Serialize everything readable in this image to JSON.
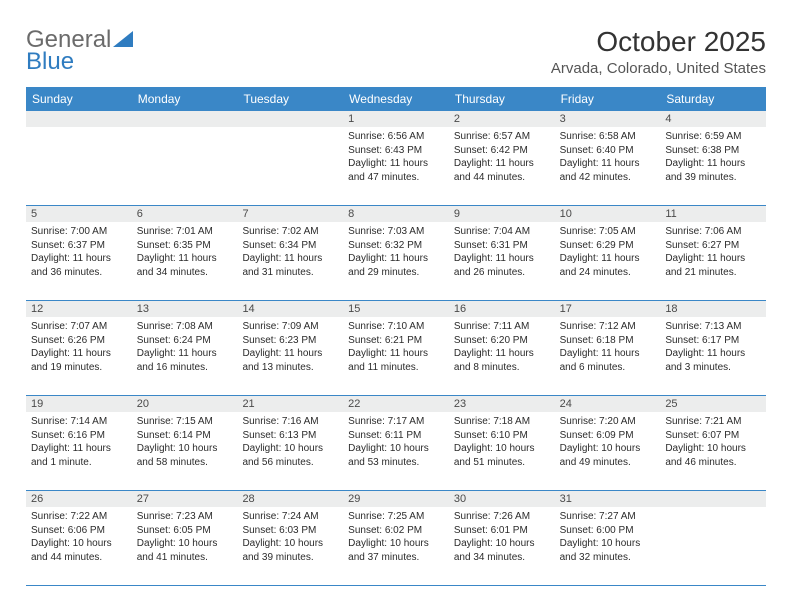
{
  "logo": {
    "general": "General",
    "blue": "Blue"
  },
  "title": "October 2025",
  "location": "Arvada, Colorado, United States",
  "day_headers": [
    "Sunday",
    "Monday",
    "Tuesday",
    "Wednesday",
    "Thursday",
    "Friday",
    "Saturday"
  ],
  "colors": {
    "header_bg": "#3a87c7",
    "header_text": "#ffffff",
    "daynum_bg": "#eceded",
    "border": "#3a87c7",
    "title_text": "#333333",
    "location_text": "#555555",
    "body_text": "#2b2b2b",
    "logo_gray": "#6b6b6b",
    "logo_blue": "#2f7cc0"
  },
  "weeks": [
    [
      null,
      null,
      null,
      {
        "n": "1",
        "sunrise": "Sunrise: 6:56 AM",
        "sunset": "Sunset: 6:43 PM",
        "daylight1": "Daylight: 11 hours",
        "daylight2": "and 47 minutes."
      },
      {
        "n": "2",
        "sunrise": "Sunrise: 6:57 AM",
        "sunset": "Sunset: 6:42 PM",
        "daylight1": "Daylight: 11 hours",
        "daylight2": "and 44 minutes."
      },
      {
        "n": "3",
        "sunrise": "Sunrise: 6:58 AM",
        "sunset": "Sunset: 6:40 PM",
        "daylight1": "Daylight: 11 hours",
        "daylight2": "and 42 minutes."
      },
      {
        "n": "4",
        "sunrise": "Sunrise: 6:59 AM",
        "sunset": "Sunset: 6:38 PM",
        "daylight1": "Daylight: 11 hours",
        "daylight2": "and 39 minutes."
      }
    ],
    [
      {
        "n": "5",
        "sunrise": "Sunrise: 7:00 AM",
        "sunset": "Sunset: 6:37 PM",
        "daylight1": "Daylight: 11 hours",
        "daylight2": "and 36 minutes."
      },
      {
        "n": "6",
        "sunrise": "Sunrise: 7:01 AM",
        "sunset": "Sunset: 6:35 PM",
        "daylight1": "Daylight: 11 hours",
        "daylight2": "and 34 minutes."
      },
      {
        "n": "7",
        "sunrise": "Sunrise: 7:02 AM",
        "sunset": "Sunset: 6:34 PM",
        "daylight1": "Daylight: 11 hours",
        "daylight2": "and 31 minutes."
      },
      {
        "n": "8",
        "sunrise": "Sunrise: 7:03 AM",
        "sunset": "Sunset: 6:32 PM",
        "daylight1": "Daylight: 11 hours",
        "daylight2": "and 29 minutes."
      },
      {
        "n": "9",
        "sunrise": "Sunrise: 7:04 AM",
        "sunset": "Sunset: 6:31 PM",
        "daylight1": "Daylight: 11 hours",
        "daylight2": "and 26 minutes."
      },
      {
        "n": "10",
        "sunrise": "Sunrise: 7:05 AM",
        "sunset": "Sunset: 6:29 PM",
        "daylight1": "Daylight: 11 hours",
        "daylight2": "and 24 minutes."
      },
      {
        "n": "11",
        "sunrise": "Sunrise: 7:06 AM",
        "sunset": "Sunset: 6:27 PM",
        "daylight1": "Daylight: 11 hours",
        "daylight2": "and 21 minutes."
      }
    ],
    [
      {
        "n": "12",
        "sunrise": "Sunrise: 7:07 AM",
        "sunset": "Sunset: 6:26 PM",
        "daylight1": "Daylight: 11 hours",
        "daylight2": "and 19 minutes."
      },
      {
        "n": "13",
        "sunrise": "Sunrise: 7:08 AM",
        "sunset": "Sunset: 6:24 PM",
        "daylight1": "Daylight: 11 hours",
        "daylight2": "and 16 minutes."
      },
      {
        "n": "14",
        "sunrise": "Sunrise: 7:09 AM",
        "sunset": "Sunset: 6:23 PM",
        "daylight1": "Daylight: 11 hours",
        "daylight2": "and 13 minutes."
      },
      {
        "n": "15",
        "sunrise": "Sunrise: 7:10 AM",
        "sunset": "Sunset: 6:21 PM",
        "daylight1": "Daylight: 11 hours",
        "daylight2": "and 11 minutes."
      },
      {
        "n": "16",
        "sunrise": "Sunrise: 7:11 AM",
        "sunset": "Sunset: 6:20 PM",
        "daylight1": "Daylight: 11 hours",
        "daylight2": "and 8 minutes."
      },
      {
        "n": "17",
        "sunrise": "Sunrise: 7:12 AM",
        "sunset": "Sunset: 6:18 PM",
        "daylight1": "Daylight: 11 hours",
        "daylight2": "and 6 minutes."
      },
      {
        "n": "18",
        "sunrise": "Sunrise: 7:13 AM",
        "sunset": "Sunset: 6:17 PM",
        "daylight1": "Daylight: 11 hours",
        "daylight2": "and 3 minutes."
      }
    ],
    [
      {
        "n": "19",
        "sunrise": "Sunrise: 7:14 AM",
        "sunset": "Sunset: 6:16 PM",
        "daylight1": "Daylight: 11 hours",
        "daylight2": "and 1 minute."
      },
      {
        "n": "20",
        "sunrise": "Sunrise: 7:15 AM",
        "sunset": "Sunset: 6:14 PM",
        "daylight1": "Daylight: 10 hours",
        "daylight2": "and 58 minutes."
      },
      {
        "n": "21",
        "sunrise": "Sunrise: 7:16 AM",
        "sunset": "Sunset: 6:13 PM",
        "daylight1": "Daylight: 10 hours",
        "daylight2": "and 56 minutes."
      },
      {
        "n": "22",
        "sunrise": "Sunrise: 7:17 AM",
        "sunset": "Sunset: 6:11 PM",
        "daylight1": "Daylight: 10 hours",
        "daylight2": "and 53 minutes."
      },
      {
        "n": "23",
        "sunrise": "Sunrise: 7:18 AM",
        "sunset": "Sunset: 6:10 PM",
        "daylight1": "Daylight: 10 hours",
        "daylight2": "and 51 minutes."
      },
      {
        "n": "24",
        "sunrise": "Sunrise: 7:20 AM",
        "sunset": "Sunset: 6:09 PM",
        "daylight1": "Daylight: 10 hours",
        "daylight2": "and 49 minutes."
      },
      {
        "n": "25",
        "sunrise": "Sunrise: 7:21 AM",
        "sunset": "Sunset: 6:07 PM",
        "daylight1": "Daylight: 10 hours",
        "daylight2": "and 46 minutes."
      }
    ],
    [
      {
        "n": "26",
        "sunrise": "Sunrise: 7:22 AM",
        "sunset": "Sunset: 6:06 PM",
        "daylight1": "Daylight: 10 hours",
        "daylight2": "and 44 minutes."
      },
      {
        "n": "27",
        "sunrise": "Sunrise: 7:23 AM",
        "sunset": "Sunset: 6:05 PM",
        "daylight1": "Daylight: 10 hours",
        "daylight2": "and 41 minutes."
      },
      {
        "n": "28",
        "sunrise": "Sunrise: 7:24 AM",
        "sunset": "Sunset: 6:03 PM",
        "daylight1": "Daylight: 10 hours",
        "daylight2": "and 39 minutes."
      },
      {
        "n": "29",
        "sunrise": "Sunrise: 7:25 AM",
        "sunset": "Sunset: 6:02 PM",
        "daylight1": "Daylight: 10 hours",
        "daylight2": "and 37 minutes."
      },
      {
        "n": "30",
        "sunrise": "Sunrise: 7:26 AM",
        "sunset": "Sunset: 6:01 PM",
        "daylight1": "Daylight: 10 hours",
        "daylight2": "and 34 minutes."
      },
      {
        "n": "31",
        "sunrise": "Sunrise: 7:27 AM",
        "sunset": "Sunset: 6:00 PM",
        "daylight1": "Daylight: 10 hours",
        "daylight2": "and 32 minutes."
      },
      null
    ]
  ]
}
